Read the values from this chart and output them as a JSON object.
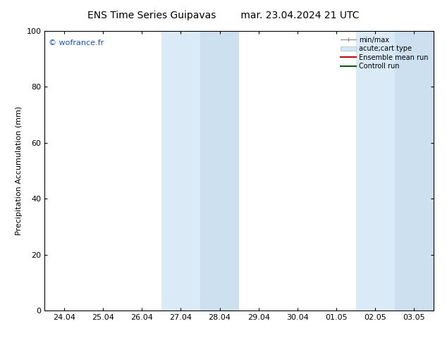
{
  "title_left": "ENS Time Series Guipavas",
  "title_right": "mar. 23.04.2024 21 UTC",
  "ylabel": "Precipitation Accumulation (mm)",
  "ylim": [
    0,
    100
  ],
  "yticks": [
    0,
    20,
    40,
    60,
    80,
    100
  ],
  "xtick_labels": [
    "24.04",
    "25.04",
    "26.04",
    "27.04",
    "28.04",
    "29.04",
    "30.04",
    "01.05",
    "02.05",
    "03.05"
  ],
  "watermark": "© wofrance.fr",
  "watermark_color": "#1155cc",
  "background_color": "#ffffff",
  "shaded_regions": [
    {
      "xstart": 3.0,
      "xend": 4.0,
      "color": "#daeaf7"
    },
    {
      "xstart": 4.0,
      "xend": 5.0,
      "color": "#cce0f0"
    },
    {
      "xstart": 8.0,
      "xend": 9.0,
      "color": "#daeaf7"
    },
    {
      "xstart": 9.0,
      "xend": 10.0,
      "color": "#cce0f0"
    }
  ],
  "legend_labels": [
    "min/max",
    "acute;cart type",
    "Ensemble mean run",
    "Controll run"
  ],
  "legend_colors_line": [
    "#999999",
    "#bbccdd",
    "#ff0000",
    "#008800"
  ],
  "title_fontsize": 10,
  "axis_fontsize": 8,
  "tick_fontsize": 8,
  "fig_width": 6.34,
  "fig_height": 4.9,
  "dpi": 100
}
